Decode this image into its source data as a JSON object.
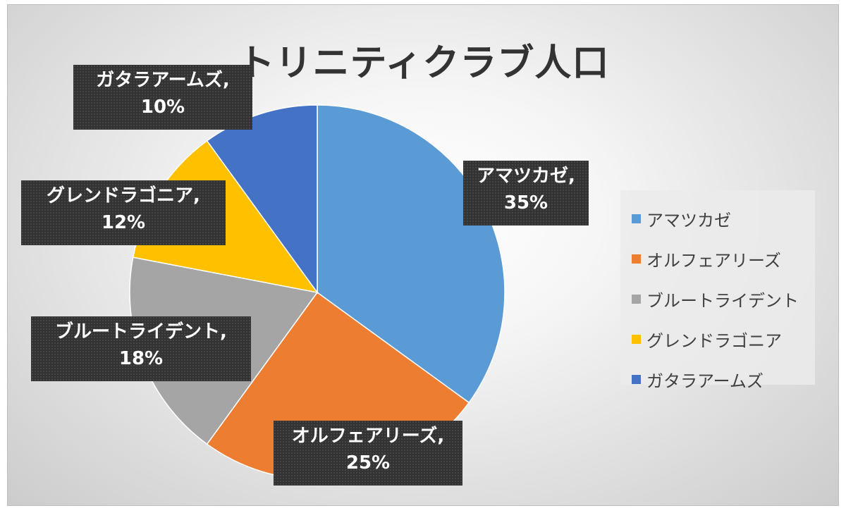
{
  "chart_data": {
    "type": "pie",
    "title": "トリニティクラブ人口",
    "categories": [
      "アマツカゼ",
      "オルフェアリーズ",
      "ブルートライデント",
      "グレンドラゴニア",
      "ガタラアームズ"
    ],
    "values": [
      35,
      25,
      18,
      12,
      10
    ],
    "value_labels": [
      "35%",
      "25%",
      "18%",
      "12%",
      "10%"
    ],
    "colors": [
      "#5b9bd5",
      "#ed7d31",
      "#a5a5a5",
      "#ffc000",
      "#4472c4"
    ],
    "legend_position": "right",
    "start_angle": "top",
    "direction": "clockwise"
  }
}
